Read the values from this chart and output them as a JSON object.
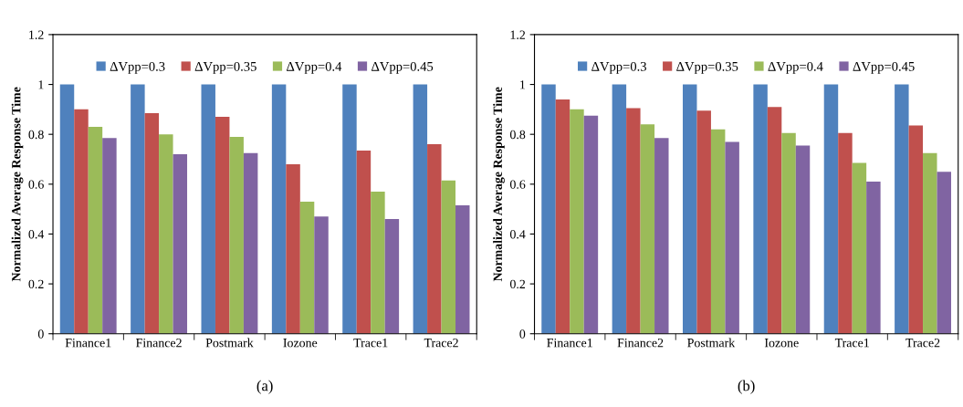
{
  "chart_data": [
    {
      "type": "bar",
      "ylabel": "Normalized Average Response Time",
      "categories": [
        "Finance1",
        "Finance2",
        "Postmark",
        "Iozone",
        "Trace1",
        "Trace2"
      ],
      "ylim": [
        0,
        1.2
      ],
      "yticks": [
        0,
        0.2,
        0.4,
        0.6,
        0.8,
        1,
        1.2
      ],
      "grid": false,
      "legend": "top",
      "annotations": [
        "(a)"
      ],
      "series": [
        {
          "name": "ΔVpp=0.3",
          "color": "#4f81bd",
          "values": [
            1,
            1,
            1,
            1,
            1,
            1
          ]
        },
        {
          "name": "ΔVpp=0.35",
          "color": "#c0504d",
          "values": [
            0.9,
            0.885,
            0.87,
            0.68,
            0.735,
            0.76
          ]
        },
        {
          "name": "ΔVpp=0.4",
          "color": "#9bbb59",
          "values": [
            0.83,
            0.8,
            0.79,
            0.53,
            0.57,
            0.615
          ]
        },
        {
          "name": "ΔVpp=0.45",
          "color": "#8064a2",
          "values": [
            0.785,
            0.72,
            0.725,
            0.47,
            0.46,
            0.515
          ]
        }
      ]
    },
    {
      "type": "bar",
      "ylabel": "Normalized Average Response Time",
      "categories": [
        "Finance1",
        "Finance2",
        "Postmark",
        "Iozone",
        "Trace1",
        "Trace2"
      ],
      "ylim": [
        0,
        1.2
      ],
      "yticks": [
        0,
        0.2,
        0.4,
        0.6,
        0.8,
        1,
        1.2
      ],
      "grid": false,
      "legend": "top",
      "annotations": [
        "(b)"
      ],
      "series": [
        {
          "name": "ΔVpp=0.3",
          "color": "#4f81bd",
          "values": [
            1,
            1,
            1,
            1,
            1,
            1
          ]
        },
        {
          "name": "ΔVpp=0.35",
          "color": "#c0504d",
          "values": [
            0.94,
            0.905,
            0.895,
            0.91,
            0.805,
            0.835
          ]
        },
        {
          "name": "ΔVpp=0.4",
          "color": "#9bbb59",
          "values": [
            0.9,
            0.84,
            0.82,
            0.805,
            0.685,
            0.725
          ]
        },
        {
          "name": "ΔVpp=0.45",
          "color": "#8064a2",
          "values": [
            0.875,
            0.785,
            0.77,
            0.755,
            0.61,
            0.65
          ]
        }
      ]
    }
  ]
}
